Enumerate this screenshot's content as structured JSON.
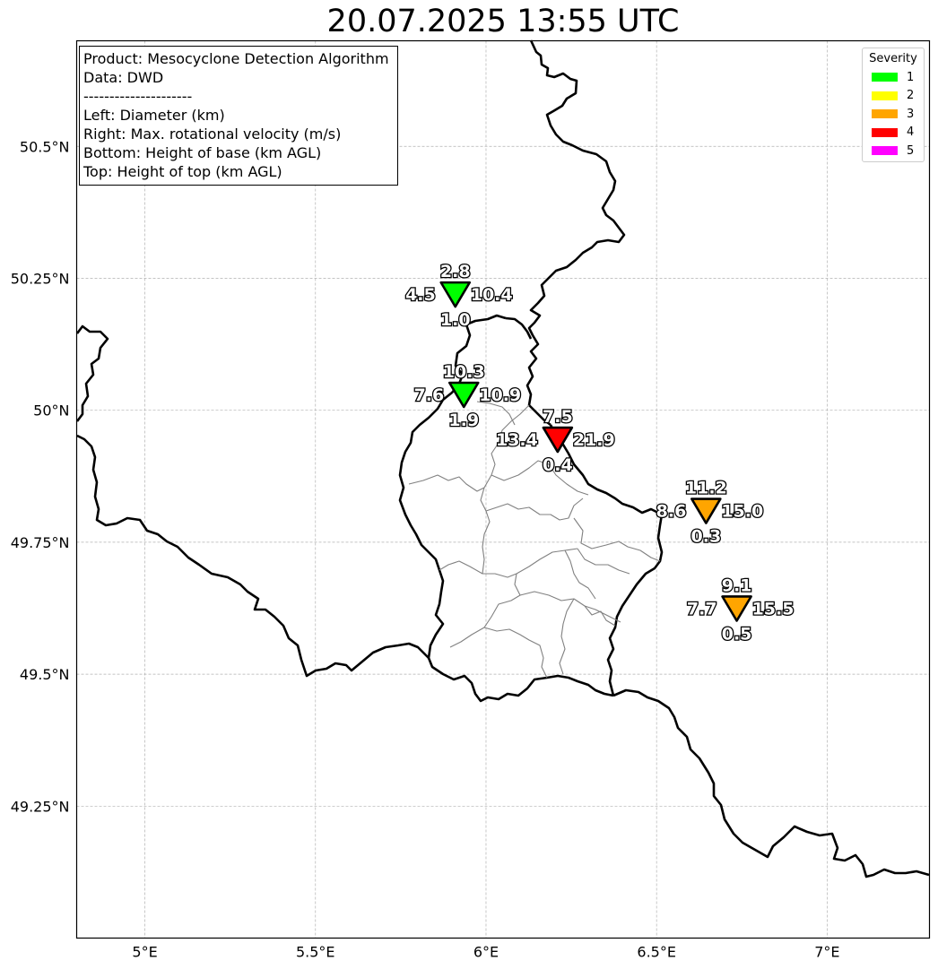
{
  "title": "20.07.2025 13:55 UTC",
  "info": {
    "lines": [
      "Product: Mesocyclone Detection Algorithm",
      "Data: DWD",
      "---------------------",
      "Left: Diameter (km)",
      "Right: Max. rotational velocity (m/s)",
      "Bottom: Height of base (km AGL)",
      "Top: Height of top (km AGL)"
    ]
  },
  "legend": {
    "title": "Severity",
    "items": [
      {
        "label": "1",
        "color": "#00ff00"
      },
      {
        "label": "2",
        "color": "#ffff00"
      },
      {
        "label": "3",
        "color": "#ffa500"
      },
      {
        "label": "4",
        "color": "#ff0000"
      },
      {
        "label": "5",
        "color": "#ff00ff"
      }
    ]
  },
  "axes": {
    "lon_range": [
      4.8,
      7.3
    ],
    "lat_range": [
      49.0,
      50.7
    ],
    "lon_ticks": [
      {
        "value": 5.0,
        "label": "5°E"
      },
      {
        "value": 5.5,
        "label": "5.5°E"
      },
      {
        "value": 6.0,
        "label": "6°E"
      },
      {
        "value": 6.5,
        "label": "6.5°E"
      },
      {
        "value": 7.0,
        "label": "7°E"
      }
    ],
    "lat_ticks": [
      {
        "value": 50.5,
        "label": "50.5°N"
      },
      {
        "value": 50.25,
        "label": "50.25°N"
      },
      {
        "value": 50.0,
        "label": "50°N"
      },
      {
        "value": 49.75,
        "label": "49.75°N"
      },
      {
        "value": 49.5,
        "label": "49.5°N"
      },
      {
        "value": 49.25,
        "label": "49.25°N"
      }
    ],
    "grid": true
  },
  "mesocyclones": [
    {
      "lon": 5.91,
      "lat": 50.22,
      "severity": 1,
      "diameter": "4.5",
      "velocity": "10.4",
      "base": "1.0",
      "top": "2.8"
    },
    {
      "lon": 5.935,
      "lat": 50.03,
      "severity": 1,
      "diameter": "7.6",
      "velocity": "10.9",
      "base": "1.9",
      "top": "10.3"
    },
    {
      "lon": 6.21,
      "lat": 49.945,
      "severity": 4,
      "diameter": "13.4",
      "velocity": "21.9",
      "base": "0.4",
      "top": "7.5"
    },
    {
      "lon": 6.645,
      "lat": 49.81,
      "severity": 3,
      "diameter": "8.6",
      "velocity": "15.0",
      "base": "0.3",
      "top": "11.2"
    },
    {
      "lon": 6.735,
      "lat": 49.625,
      "severity": 3,
      "diameter": "7.7",
      "velocity": "15.5",
      "base": "0.5",
      "top": "9.1"
    }
  ]
}
